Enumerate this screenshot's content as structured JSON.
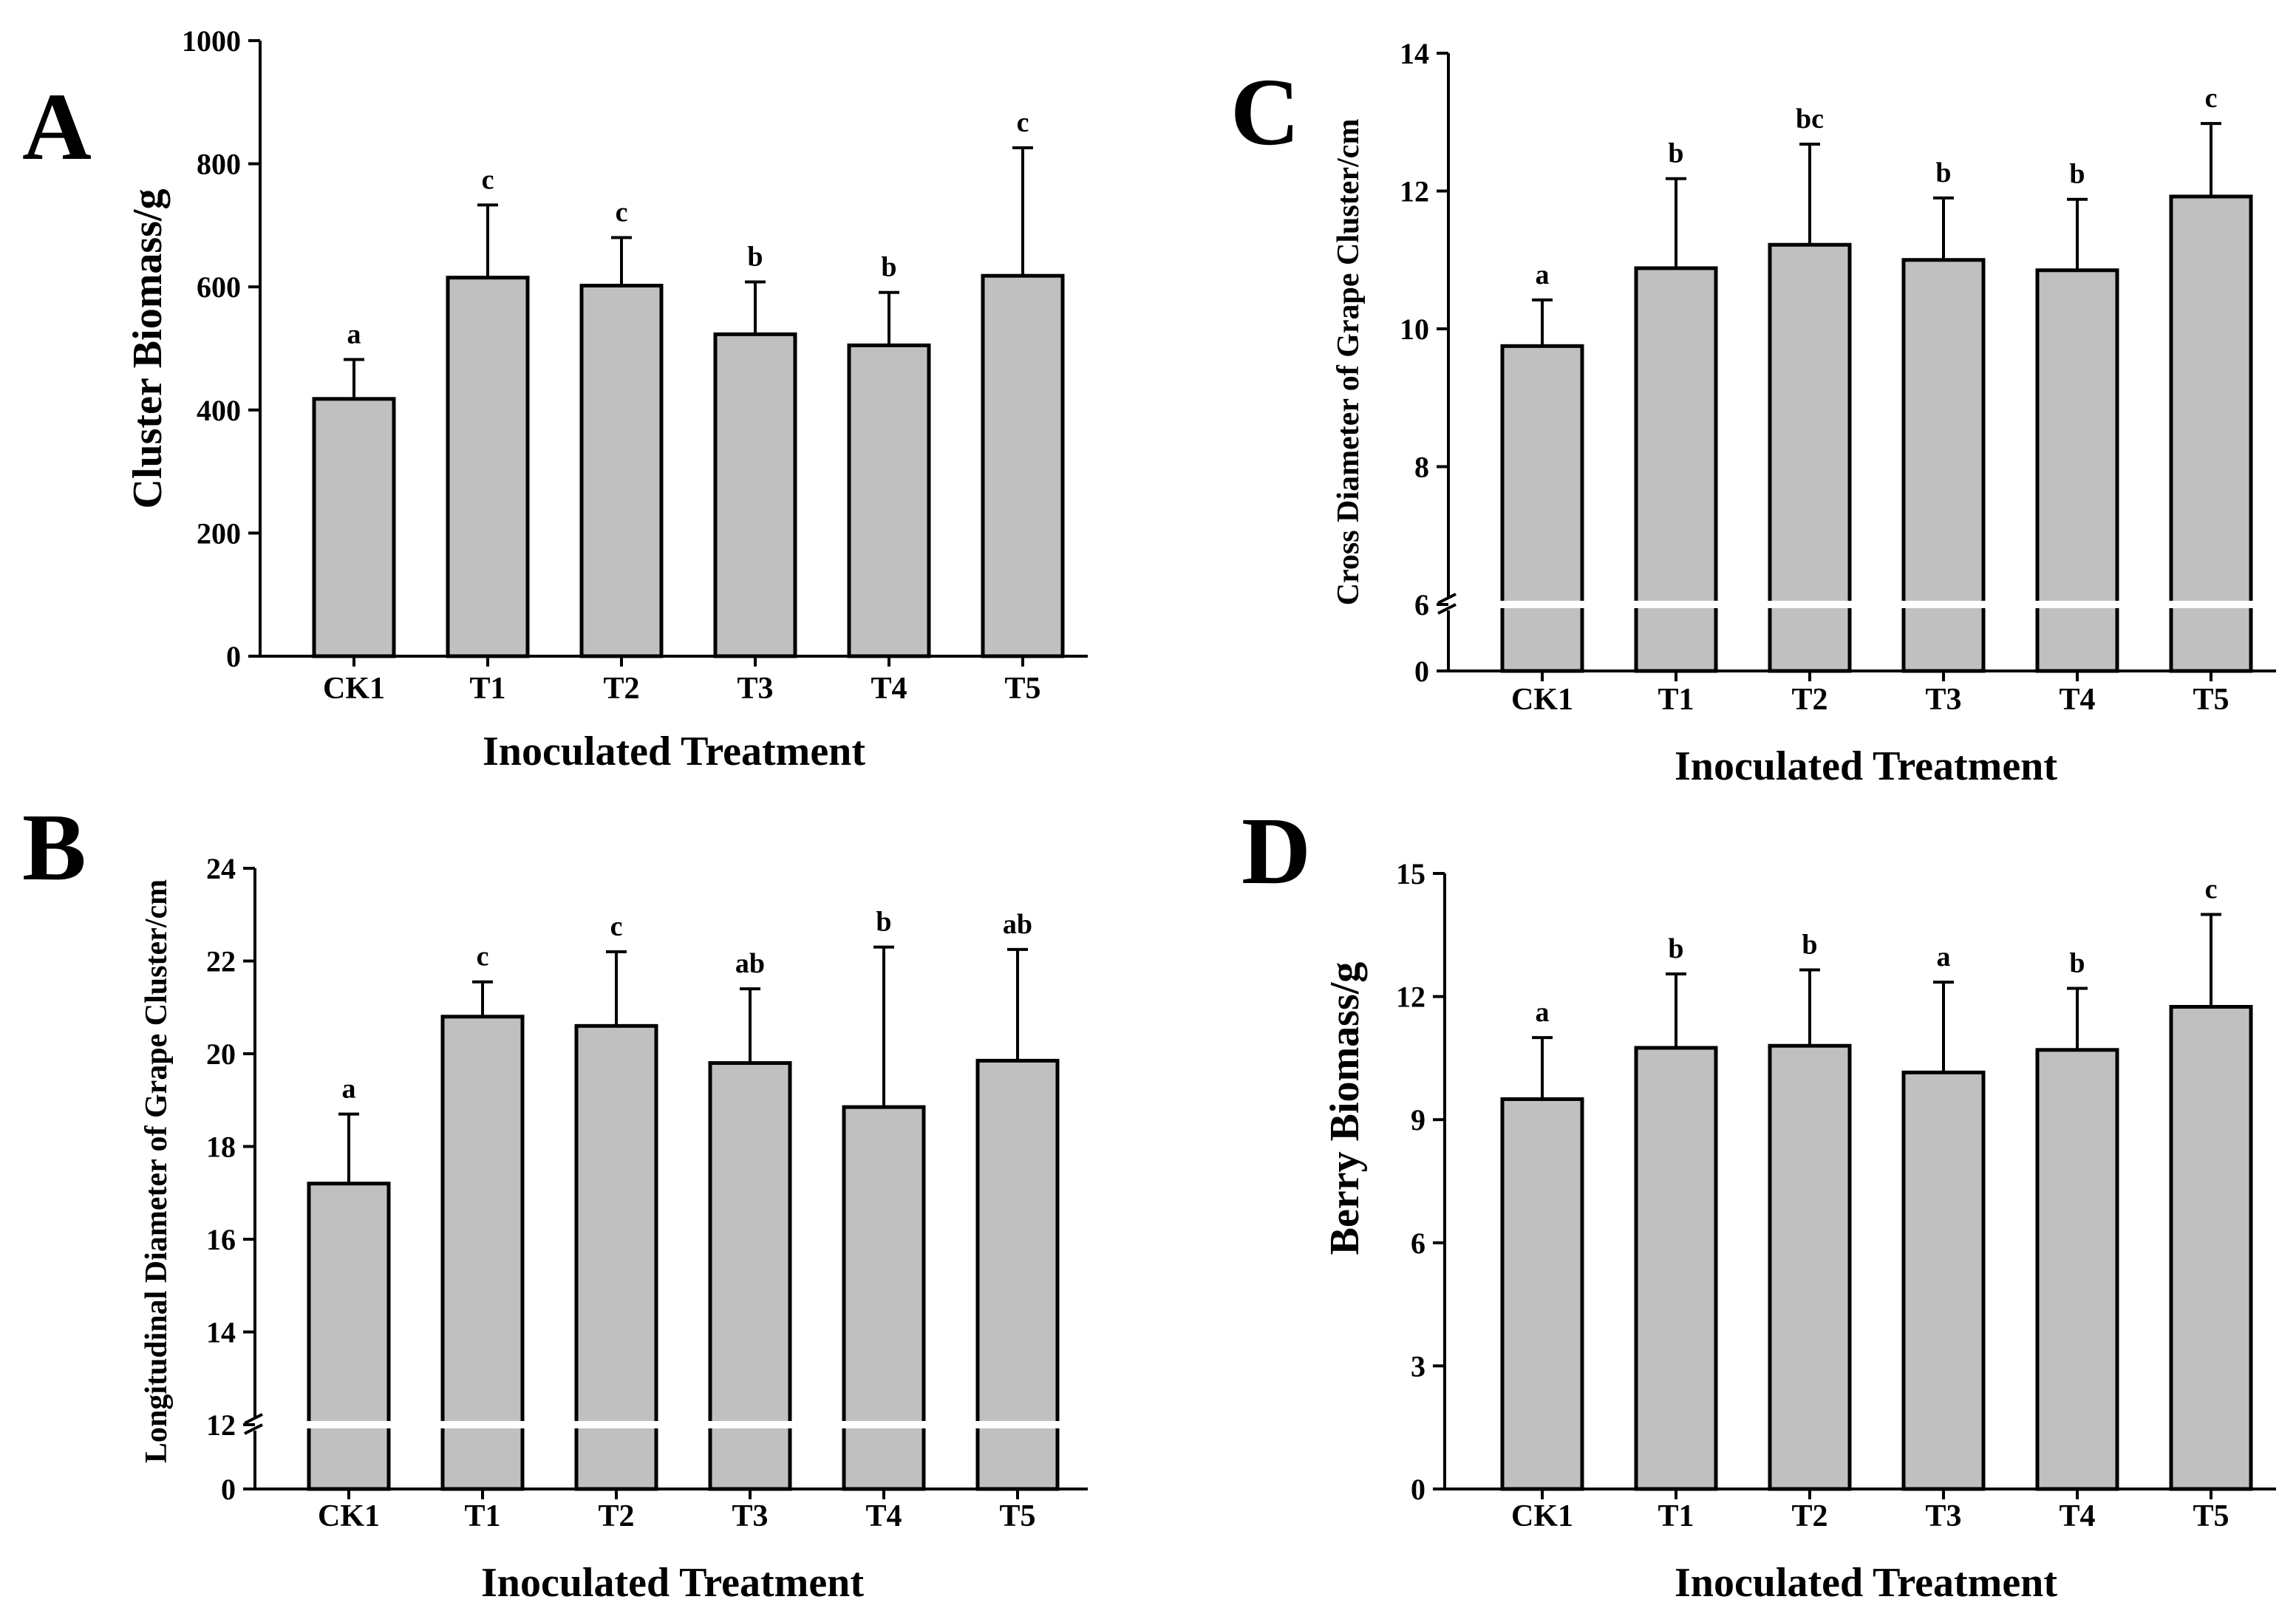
{
  "chart_data": [
    {
      "type": "bar",
      "panel": "A",
      "categories": [
        "CK1",
        "T1",
        "T2",
        "T3",
        "T4",
        "T5"
      ],
      "series": [
        {
          "values": [
            418,
            615,
            602,
            523,
            505,
            618
          ]
        }
      ],
      "error_bars": [
        482,
        733,
        680,
        608,
        591,
        826
      ],
      "significance": [
        "a",
        "c",
        "c",
        "b",
        "b",
        "c"
      ],
      "xlabel": "Inoculated Treatment",
      "ylabel": "Cluster Biomass/g",
      "ylim": [
        0,
        1000
      ],
      "yticks": [
        "0",
        "200",
        "400",
        "600",
        "800",
        "1000"
      ],
      "axis_break": false
    },
    {
      "type": "bar",
      "panel": "B",
      "categories": [
        "CK1",
        "T1",
        "T2",
        "T3",
        "T4",
        "T5"
      ],
      "series": [
        {
          "values": [
            17.2,
            20.8,
            20.6,
            19.8,
            18.85,
            19.85
          ]
        }
      ],
      "error_bars": [
        18.7,
        21.55,
        22.2,
        21.4,
        22.3,
        22.25
      ],
      "significance": [
        "a",
        "c",
        "c",
        "ab",
        "b",
        "ab"
      ],
      "xlabel": "Inoculated Treatment",
      "ylabel": "Longitudinal Diameter of Grape Cluster/cm",
      "ylim": [
        12,
        24
      ],
      "yticks": [
        "0",
        "12",
        "14",
        "16",
        "18",
        "20",
        "22",
        "24"
      ],
      "axis_break": true
    },
    {
      "type": "bar",
      "panel": "C",
      "categories": [
        "CK1",
        "T1",
        "T2",
        "T3",
        "T4",
        "T5"
      ],
      "series": [
        {
          "values": [
            9.75,
            10.88,
            11.22,
            11.0,
            10.85,
            11.92
          ]
        }
      ],
      "error_bars": [
        10.42,
        12.18,
        12.68,
        11.9,
        11.88,
        12.98
      ],
      "significance": [
        "a",
        "b",
        "bc",
        "b",
        "b",
        "c"
      ],
      "xlabel": "Inoculated Treatment",
      "ylabel": "Cross Diameter of Grape Cluster/cm",
      "ylim": [
        6,
        14
      ],
      "yticks": [
        "0",
        "6",
        "8",
        "10",
        "12",
        "14"
      ],
      "axis_break": true
    },
    {
      "type": "bar",
      "panel": "D",
      "categories": [
        "CK1",
        "T1",
        "T2",
        "T3",
        "T4",
        "T5"
      ],
      "series": [
        {
          "values": [
            9.5,
            10.75,
            10.8,
            10.15,
            10.7,
            11.75
          ]
        }
      ],
      "error_bars": [
        11.0,
        12.55,
        12.65,
        12.35,
        12.2,
        14.0
      ],
      "significance": [
        "a",
        "b",
        "b",
        "a",
        "b",
        "c"
      ],
      "xlabel": "Inoculated Treatment",
      "ylabel": "Berry Biomass/g",
      "ylim": [
        0,
        15
      ],
      "yticks": [
        "0",
        "3",
        "6",
        "9",
        "12",
        "15"
      ],
      "axis_break": false
    }
  ],
  "colors": {
    "bar_fill": "#c0c0c0",
    "axis": "#000000"
  }
}
